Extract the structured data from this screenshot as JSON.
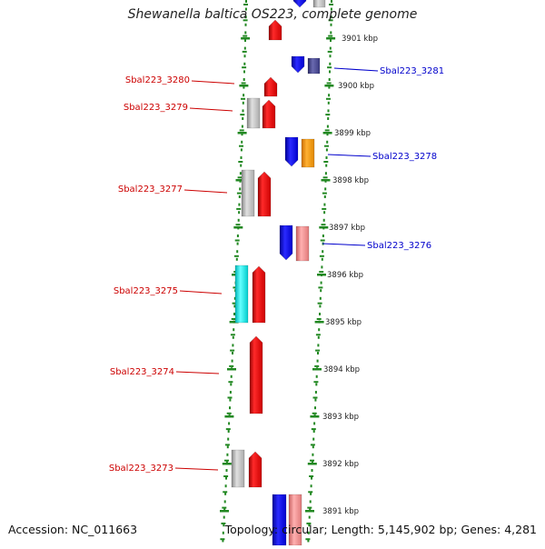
{
  "title": "Shewanella baltica OS223, complete genome",
  "footer": {
    "accession": "Accession: NC_011663",
    "summary": "Topology: circular; Length: 5,145,902 bp; Genes: 4,281"
  },
  "colors": {
    "forward_gene": "#ff0000",
    "reverse_gene": "#0000ff",
    "backbone": "#888888",
    "tick": "#228822",
    "grey_feature": "#bbbbbb",
    "cyan_feature": "#00e5e5",
    "orange_feature": "#ff9900",
    "pink_feature": "#f08080",
    "navy_feature": "#44448a",
    "forward_label": "#cc0000",
    "reverse_label": "#0000cc"
  },
  "ticks": [
    {
      "label": "3901 kbp"
    },
    {
      "label": "3900 kbp"
    },
    {
      "label": "3899 kbp"
    },
    {
      "label": "3898 kbp"
    },
    {
      "label": "3897 kbp"
    },
    {
      "label": "3896 kbp"
    },
    {
      "label": "3895 kbp"
    },
    {
      "label": "3894 kbp"
    },
    {
      "label": "3893 kbp"
    },
    {
      "label": "3892 kbp"
    },
    {
      "label": "3891 kbp"
    }
  ],
  "forward_labels": [
    {
      "text": "Sbal223_3280"
    },
    {
      "text": "Sbal223_3279"
    },
    {
      "text": "Sbal223_3277"
    },
    {
      "text": "Sbal223_3275"
    },
    {
      "text": "Sbal223_3274"
    },
    {
      "text": "Sbal223_3273"
    }
  ],
  "reverse_labels": [
    {
      "text": "Sbal223_3281"
    },
    {
      "text": "Sbal223_3278"
    },
    {
      "text": "Sbal223_3276"
    }
  ]
}
